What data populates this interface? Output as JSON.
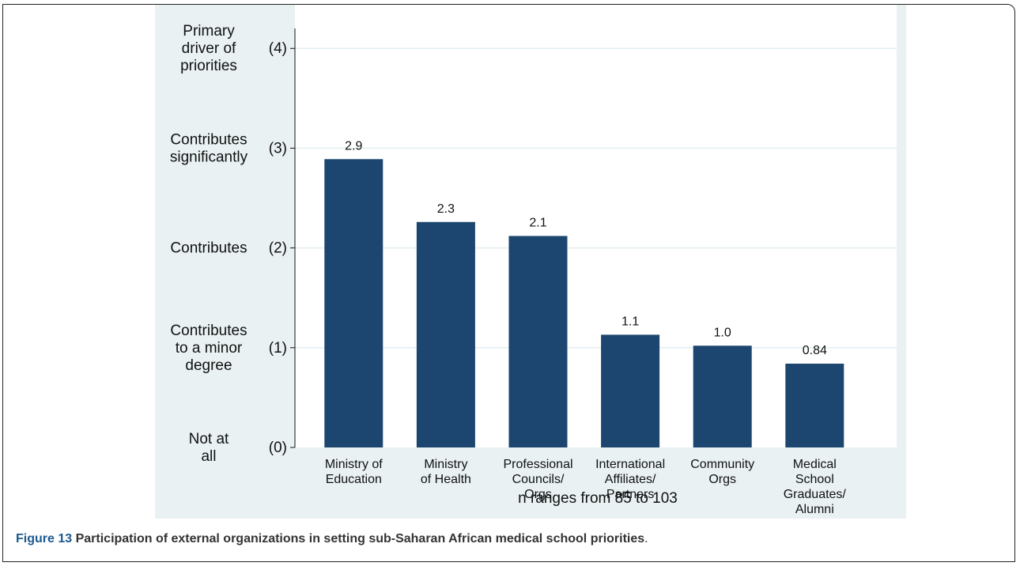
{
  "chart_data": {
    "type": "bar",
    "categories": [
      [
        "Ministry of",
        "Education"
      ],
      [
        "Ministry",
        "of Health"
      ],
      [
        "Professional",
        "Councils/",
        "Orgs"
      ],
      [
        "International",
        "Affiliates/",
        "Partners"
      ],
      [
        "Community",
        "Orgs"
      ],
      [
        "Medical",
        "School",
        "Graduates/",
        "Alumni"
      ]
    ],
    "values": [
      2.89,
      2.26,
      2.12,
      1.13,
      1.02,
      0.84
    ],
    "value_labels": [
      "2.9",
      "2.3",
      "2.1",
      "1.1",
      "1.0",
      "0.84"
    ],
    "color": "#1c466f",
    "ylim": [
      0,
      4.2
    ],
    "yticks": [
      {
        "value": 0,
        "label": "(0)"
      },
      {
        "value": 1,
        "label": "(1)"
      },
      {
        "value": 2,
        "label": "(2)"
      },
      {
        "value": 3,
        "label": "(3)"
      },
      {
        "value": 4,
        "label": "(4)"
      }
    ],
    "ytick_descriptions": [
      [
        "Not at",
        "all"
      ],
      [
        "Contributes",
        "to a minor",
        "degree"
      ],
      [
        "Contributes"
      ],
      [
        "Contributes",
        "significantly"
      ],
      [
        "Primary",
        "driver of",
        "priorities"
      ]
    ],
    "xlabel": "n ranges from 85 to 103",
    "grid": true
  },
  "caption": {
    "label": "Figure 13",
    "text": "Participation of external organizations in setting sub-Saharan African medical school priorities",
    "end": "."
  }
}
